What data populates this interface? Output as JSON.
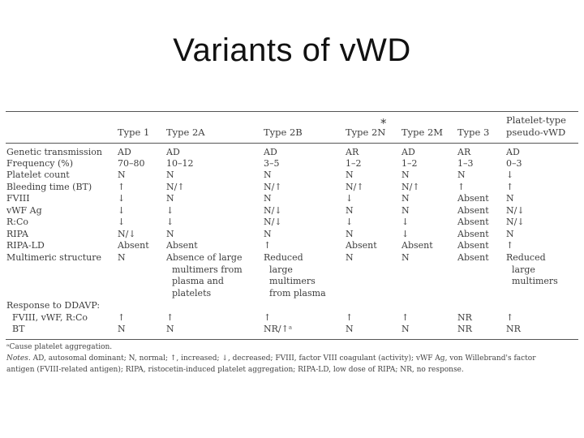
{
  "slide": {
    "title": "Variants of vWD"
  },
  "table": {
    "headers": [
      "",
      "Type 1",
      "Type 2A",
      "Type 2B",
      "Type 2N",
      "Type 2M",
      "Type 3",
      "Platelet-type\npseudo-vWD"
    ],
    "rows": [
      [
        "Genetic transmission",
        "AD",
        "AD",
        "AD",
        "AR",
        "AD",
        "AR",
        "AD"
      ],
      [
        "Frequency (%)",
        "70–80",
        "10–12",
        "3–5",
        "1–2",
        "1–2",
        "1–3",
        "0–3"
      ],
      [
        "Platelet count",
        "N",
        "N",
        "N",
        "N",
        "N",
        "N",
        "↓"
      ],
      [
        "Bleeding time (BT)",
        "↑",
        "N/↑",
        "N/↑",
        "N/↑",
        "N/↑",
        "↑",
        "↑"
      ],
      [
        "FVIII",
        "↓",
        "N",
        "N",
        "↓",
        "N",
        "Absent",
        "N"
      ],
      [
        "vWF Ag",
        "↓",
        "↓",
        "N/↓",
        "N",
        "N",
        "Absent",
        "N/↓"
      ],
      [
        "R:Co",
        "↓",
        "↓",
        "N/↓",
        "↓",
        "↓",
        "Absent",
        "N/↓"
      ],
      [
        "RIPA",
        "N/↓",
        "N",
        "N",
        "N",
        "↓",
        "Absent",
        "N"
      ],
      [
        "RIPA-LD",
        "Absent",
        "Absent",
        "↑",
        "Absent",
        "Absent",
        "Absent",
        "↑"
      ],
      [
        "Multimeric structure",
        "N",
        "Absence of large\n  multimers from\n  plasma and\n  platelets",
        "Reduced\n  large\n  multimers\n  from plasma",
        "N",
        "N",
        "Absent",
        "Reduced\n  large\n  multimers"
      ],
      [
        "Response to DDAVP:",
        "",
        "",
        "",
        "",
        "",
        "",
        ""
      ],
      [
        "  FVIII, vWF, R:Co",
        "↑",
        "↑",
        "↑",
        "↑",
        "↑",
        "NR",
        "↑"
      ],
      [
        "  BT",
        "N",
        "N",
        "NR/↑ᵃ",
        "N",
        "N",
        "NR",
        "NR"
      ]
    ],
    "annotation_mark": "*",
    "footnote_a": "ᵃCause platelet aggregation.",
    "notes_label": "Notes.",
    "notes_line1": " AD, autosomal dominant; N, normal; ↑, increased; ↓, decreased; FVIII, factor VIII coagulant (activity); vWF Ag, von Willebrand's factor",
    "notes_line2": "antigen (FVIII-related antigen); RIPA, ristocetin-induced platelet aggregation; RIPA-LD, low dose of RIPA; NR, no response."
  }
}
